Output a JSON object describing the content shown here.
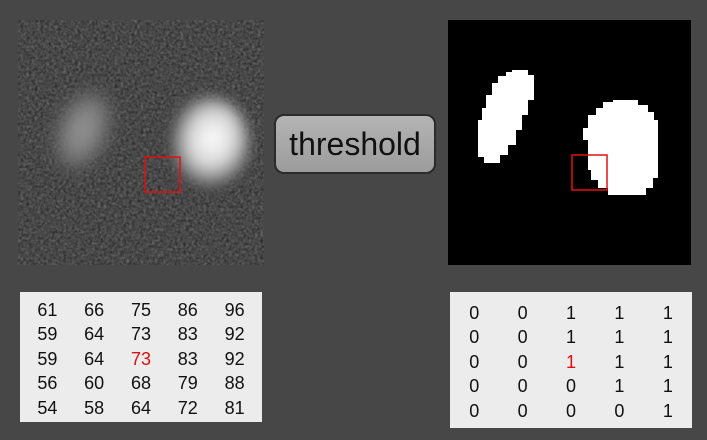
{
  "button": {
    "label": "threshold"
  },
  "colors": {
    "highlight": "#e01010",
    "roi_box": "#e01010"
  },
  "gray_matrix": [
    [
      "61",
      "66",
      "75",
      "86",
      "96"
    ],
    [
      "59",
      "64",
      "73",
      "83",
      "92"
    ],
    [
      "59",
      "64",
      "73",
      "83",
      "92"
    ],
    [
      "56",
      "60",
      "68",
      "79",
      "88"
    ],
    [
      "54",
      "58",
      "64",
      "72",
      "81"
    ]
  ],
  "binary_matrix": [
    [
      "0",
      "0",
      "1",
      "1",
      "1"
    ],
    [
      "0",
      "0",
      "1",
      "1",
      "1"
    ],
    [
      "0",
      "0",
      "1",
      "1",
      "1"
    ],
    [
      "0",
      "0",
      "0",
      "1",
      "1"
    ],
    [
      "0",
      "0",
      "0",
      "0",
      "1"
    ]
  ],
  "highlight_cell": {
    "row": 2,
    "col": 2
  }
}
